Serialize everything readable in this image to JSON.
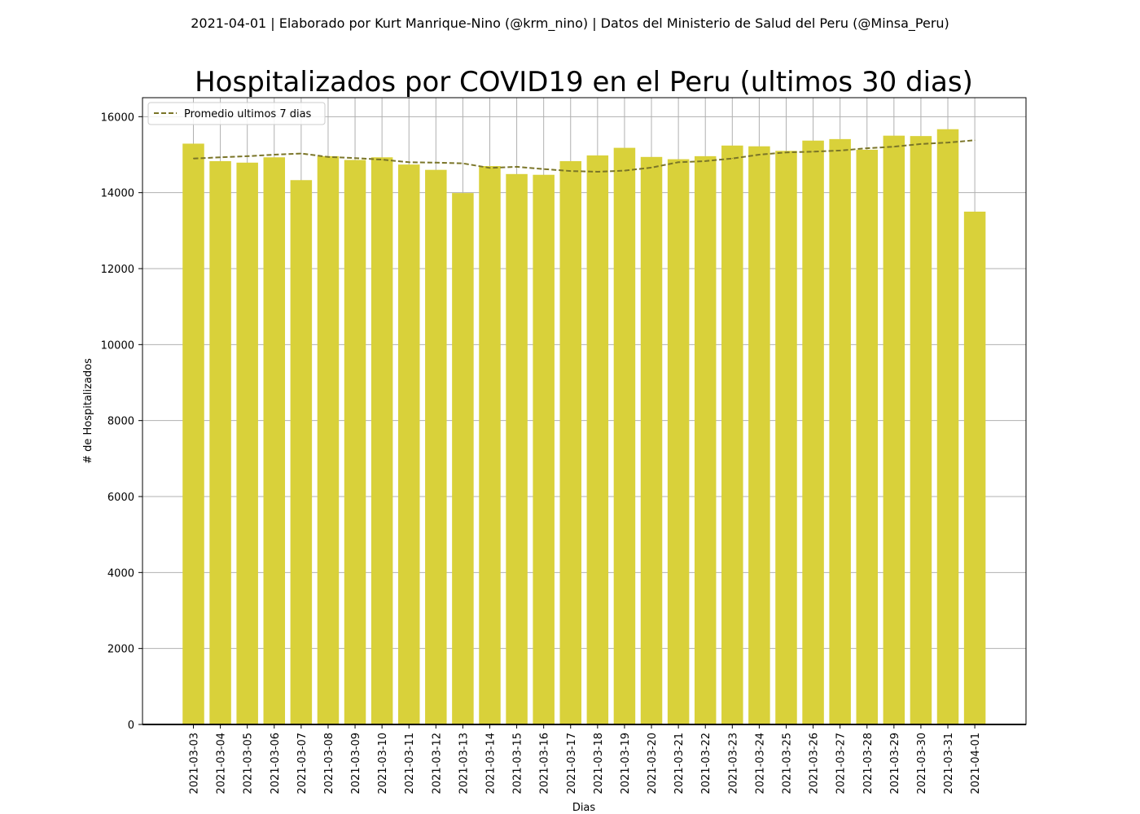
{
  "suptitle": "2021-04-01 | Elaborado por Kurt Manrique-Nino (@krm_nino) | Datos del Ministerio de Salud del Peru (@Minsa_Peru)",
  "colors": {
    "bar": "#d9d13a",
    "line": "#7a7528",
    "grid": "#b0b0b0",
    "axis": "#000000"
  },
  "chart_data": {
    "type": "bar",
    "title": "Hospitalizados por COVID19 en el Peru (ultimos 30 dias)",
    "xlabel": "Dias",
    "ylabel": "# de Hospitalizados",
    "ylim": [
      0,
      16500
    ],
    "yticks": [
      0,
      2000,
      4000,
      6000,
      8000,
      10000,
      12000,
      14000,
      16000
    ],
    "grid": true,
    "legend_position": "top-left",
    "categories": [
      "2021-03-03",
      "2021-03-04",
      "2021-03-05",
      "2021-03-06",
      "2021-03-07",
      "2021-03-08",
      "2021-03-09",
      "2021-03-10",
      "2021-03-11",
      "2021-03-12",
      "2021-03-13",
      "2021-03-14",
      "2021-03-15",
      "2021-03-16",
      "2021-03-17",
      "2021-03-18",
      "2021-03-19",
      "2021-03-20",
      "2021-03-21",
      "2021-03-22",
      "2021-03-23",
      "2021-03-24",
      "2021-03-25",
      "2021-03-26",
      "2021-03-27",
      "2021-03-28",
      "2021-03-29",
      "2021-03-30",
      "2021-03-31",
      "2021-04-01"
    ],
    "series": [
      {
        "type": "bar",
        "values": [
          15290,
          14830,
          14790,
          14930,
          14330,
          14960,
          14860,
          14930,
          14740,
          14600,
          13990,
          14700,
          14490,
          14470,
          14830,
          14980,
          15180,
          14940,
          14880,
          14960,
          15240,
          15220,
          15100,
          15370,
          15410,
          15130,
          15500,
          15490,
          15670,
          13500
        ]
      },
      {
        "type": "line",
        "name": "Promedio ultimos 7 dias",
        "style": "dashed",
        "values": [
          14900,
          14930,
          14960,
          15000,
          15030,
          14940,
          14910,
          14870,
          14800,
          14790,
          14770,
          14650,
          14680,
          14620,
          14570,
          14550,
          14580,
          14660,
          14800,
          14830,
          14900,
          15000,
          15060,
          15080,
          15110,
          15170,
          15210,
          15280,
          15320,
          15380
        ]
      }
    ]
  }
}
